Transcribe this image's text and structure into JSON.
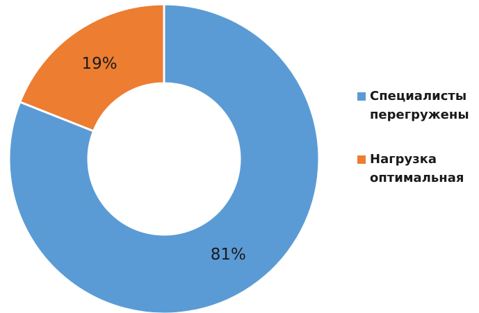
{
  "chart_data": {
    "type": "pie",
    "variant": "donut",
    "title": "",
    "categories": [
      "Специалисты перегружены",
      "Нагрузка оптимальная"
    ],
    "values": [
      81,
      19
    ],
    "data_labels": [
      "81%",
      "19%"
    ],
    "colors": [
      "#5b9bd5",
      "#ed7d31"
    ],
    "legend_position": "right"
  },
  "legend": {
    "items": [
      {
        "line1": "Специалисты",
        "line2": "перегружены",
        "color": "#5b9bd5"
      },
      {
        "line1": "Нагрузка",
        "line2": "оптимальная",
        "color": "#ed7d31"
      }
    ]
  }
}
